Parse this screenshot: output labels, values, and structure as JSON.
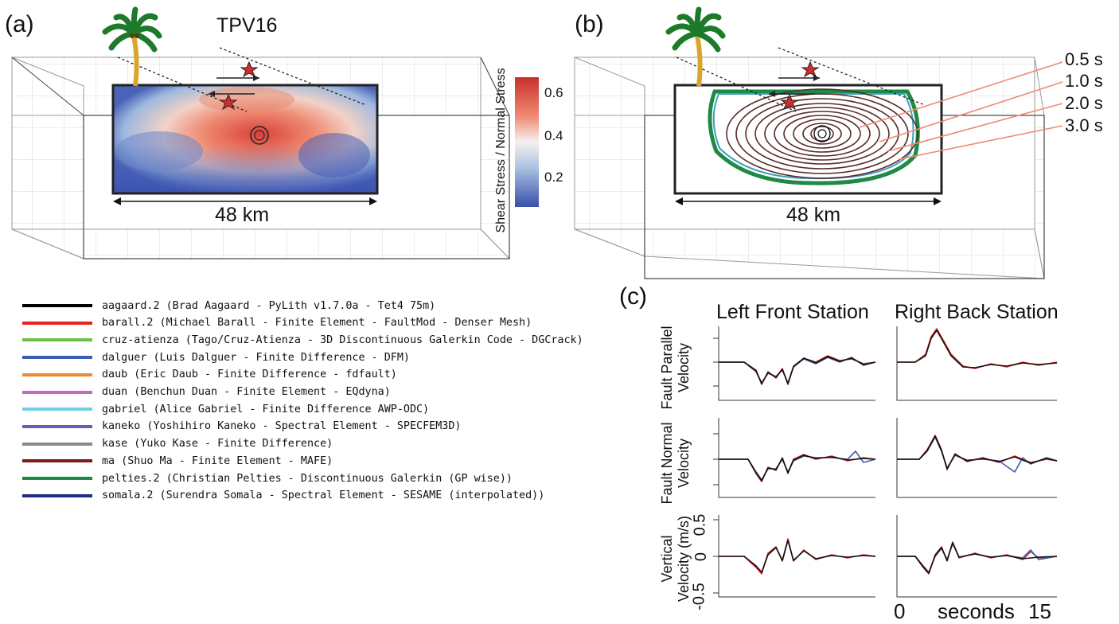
{
  "panel_a": {
    "label": "(a)",
    "title": "TPV16",
    "width_label": "48 km",
    "colorbar": {
      "label": "Shear Stress / Normal Stress",
      "ticks": [
        "0.6",
        "0.4",
        "0.2"
      ]
    }
  },
  "panel_b": {
    "label": "(b)",
    "width_label": "48 km",
    "time_labels": [
      "0.5 s",
      "1.0 s",
      "2.0 s",
      "3.0 s"
    ]
  },
  "panel_c": {
    "label": "(c)",
    "col_titles": [
      "Left Front Station",
      "Right Back Station"
    ],
    "row_labels": [
      [
        "Fault Parallel",
        "Velocity"
      ],
      [
        "Fault Normal",
        "Velocity"
      ],
      [
        "Vertical",
        "Velocity (m/s)"
      ]
    ],
    "y_ticks": [
      "0.5",
      "0",
      "-0.5"
    ],
    "x_axis": {
      "start": "0",
      "label": "seconds",
      "end": "15"
    }
  },
  "legend": [
    {
      "text": "aagaard.2 (Brad Aagaard - PyLith v1.7.0a - Tet4 75m)",
      "color": "#000000"
    },
    {
      "text": "barall.2 (Michael Barall - Finite Element - FaultMod - Denser Mesh)",
      "color": "#e8231f"
    },
    {
      "text": "cruz-atienza (Tago/Cruz-Atienza - 3D Discontinuous Galerkin Code - DGCrack)",
      "color": "#6cc04a"
    },
    {
      "text": "dalguer (Luis Dalguer - Finite Difference - DFM)",
      "color": "#3a5fb0"
    },
    {
      "text": "daub (Eric Daub - Finite Difference - fdfault)",
      "color": "#f08a30"
    },
    {
      "text": "duan (Benchun Duan - Finite Element - EQdyna)",
      "color": "#c469bf"
    },
    {
      "text": "gabriel (Alice Gabriel - Finite Difference AWP-ODC)",
      "color": "#6fd1e0"
    },
    {
      "text": "kaneko (Yoshihiro Kaneko - Spectral Element - SPECFEM3D)",
      "color": "#7258b8"
    },
    {
      "text": "kase (Yuko Kase - Finite Difference)",
      "color": "#8a8a8a"
    },
    {
      "text": "ma (Shuo Ma - Finite Element - MAFE)",
      "color": "#7a1f1f"
    },
    {
      "text": "pelties.2 (Christian Pelties - Discontinuous Galerkin (GP wise))",
      "color": "#1e8a45"
    },
    {
      "text": "somala.2 (Surendra Somala - Spectral Element - SESAME (interpolated))",
      "color": "#1f2a8a"
    }
  ]
}
